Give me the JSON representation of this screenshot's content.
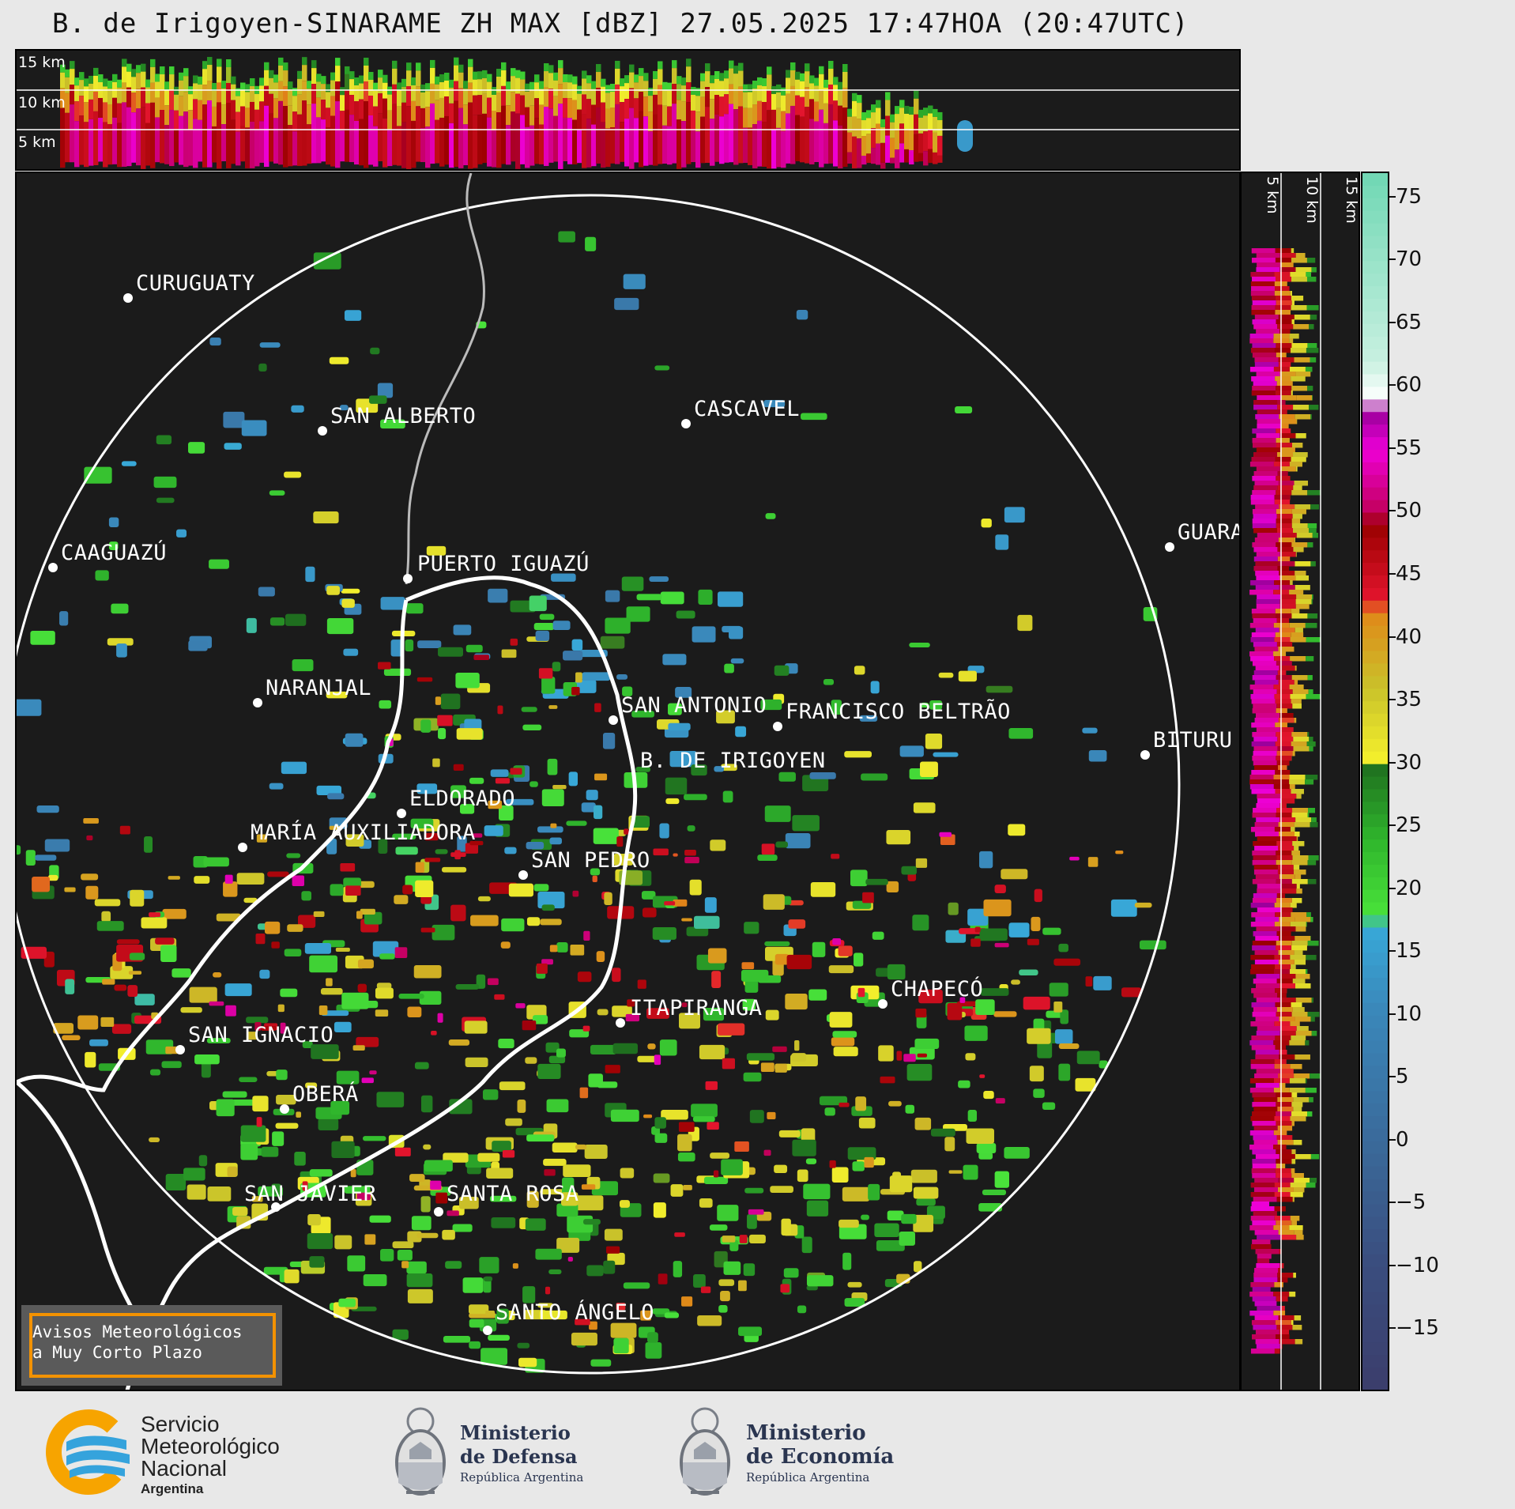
{
  "title": "B. de Irigoyen-SINARAME ZH MAX [dBZ] 27.05.2025 17:47HOA (20:47UTC)",
  "top_strip": {
    "height_labels": [
      "15 km",
      "10 km",
      "5 km"
    ]
  },
  "side_strip": {
    "height_labels": [
      "5 km",
      "10 km",
      "15 km"
    ]
  },
  "cities": [
    {
      "name": "CURUGUATY"
    },
    {
      "name": "SAN ALBERTO"
    },
    {
      "name": "CASCAVEL"
    },
    {
      "name": "CAAGUAZÚ"
    },
    {
      "name": "GUARA"
    },
    {
      "name": "PUERTO IGUAZÚ"
    },
    {
      "name": "NARANJAL"
    },
    {
      "name": "SAN ANTONIO"
    },
    {
      "name": "FRANCISCO BELTRÃO"
    },
    {
      "name": "BITURU"
    },
    {
      "name": "B. DE IRIGOYEN"
    },
    {
      "name": "ELDORADO"
    },
    {
      "name": "MARÍA AUXILIADORA"
    },
    {
      "name": "SAN PEDRO"
    },
    {
      "name": "CHAPECÓ"
    },
    {
      "name": "ITAPIRANGA"
    },
    {
      "name": "SAN IGNACIO"
    },
    {
      "name": "OBERÁ"
    },
    {
      "name": "SAN JAVIER"
    },
    {
      "name": "SANTA ROSA"
    },
    {
      "name": "SANTO ÁNGELO"
    }
  ],
  "colorbar": {
    "unit": "dBZ",
    "ticks": [
      "75",
      "70",
      "65",
      "60",
      "55",
      "50",
      "45",
      "40",
      "35",
      "30",
      "25",
      "20",
      "15",
      "10",
      "5",
      "0",
      "−5",
      "−10",
      "−15"
    ],
    "range": [
      -20,
      77
    ],
    "stops": [
      {
        "v": -20,
        "c": "#3b3d6b"
      },
      {
        "v": -10,
        "c": "#3a4d7e"
      },
      {
        "v": 0,
        "c": "#3a6a9a"
      },
      {
        "v": 10,
        "c": "#3a86b8"
      },
      {
        "v": 17,
        "c": "#38a8d8"
      },
      {
        "v": 18,
        "c": "#49e23a"
      },
      {
        "v": 24,
        "c": "#2fb52c"
      },
      {
        "v": 30,
        "c": "#1f6e1f"
      },
      {
        "v": 30.5,
        "c": "#f2ee2c"
      },
      {
        "v": 36,
        "c": "#c9c22a"
      },
      {
        "v": 42,
        "c": "#e08818"
      },
      {
        "v": 43,
        "c": "#e4152e"
      },
      {
        "v": 49,
        "c": "#9a0000"
      },
      {
        "v": 50,
        "c": "#c2005a"
      },
      {
        "v": 55,
        "c": "#ee00d8"
      },
      {
        "v": 58,
        "c": "#9a009a"
      },
      {
        "v": 59,
        "c": "#ffffff"
      },
      {
        "v": 62,
        "c": "#c8f0e0"
      },
      {
        "v": 77,
        "c": "#6fd7b4"
      }
    ]
  },
  "alert_box": {
    "line1": "Avisos Meteorológicos",
    "line2": "a Muy Corto Plazo"
  },
  "footer": {
    "smn": {
      "line1": "Servicio",
      "line2": "Meteorológico",
      "line3": "Nacional",
      "line4": "Argentina"
    },
    "defensa": {
      "line1": "Ministerio",
      "line2": "de Defensa",
      "line3": "República Argentina"
    },
    "economia": {
      "line1": "Ministerio",
      "line2": "de Economía",
      "line3": "República Argentina"
    }
  },
  "colors": {
    "background": "#1b1b1b",
    "page": "#e8e8e8",
    "alert_border": "#f39200",
    "smn_orange": "#f7a400",
    "smn_blue": "#35a3dc"
  }
}
